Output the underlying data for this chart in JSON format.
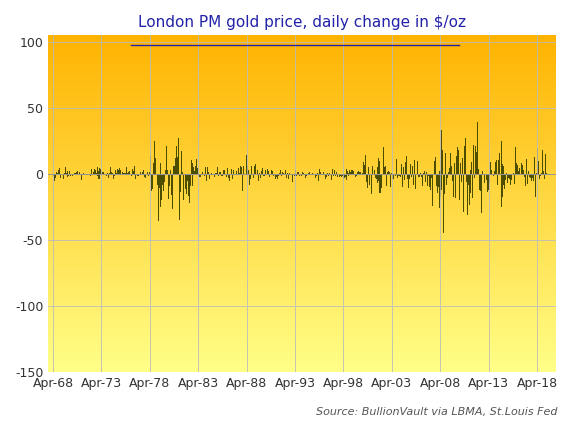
{
  "title_text": "London PM gold price, daily change in $/oz",
  "source_text": "Source: BullionVault via LBMA, St.Louis Fed",
  "ylim": [
    -150,
    105
  ],
  "yticks": [
    -150,
    -100,
    -50,
    0,
    50,
    100
  ],
  "bar_color": "#4d4d00",
  "bg_top_color": "#FFB300",
  "bg_bottom_color": "#FFFF88",
  "grid_color": "#bbbbbb",
  "title_color": "#2222aa",
  "source_color": "#555555",
  "start_year": 1968,
  "end_year": 2019,
  "xtick_years": [
    1968,
    1973,
    1978,
    1983,
    1988,
    1993,
    1998,
    2003,
    2008,
    2013,
    2018
  ],
  "xtick_labels": [
    "Apr-68",
    "Apr-73",
    "Apr-78",
    "Apr-83",
    "Apr-88",
    "Apr-93",
    "Apr-98",
    "Apr-03",
    "Apr-08",
    "Apr-13",
    "Apr-18"
  ],
  "seed": 42
}
